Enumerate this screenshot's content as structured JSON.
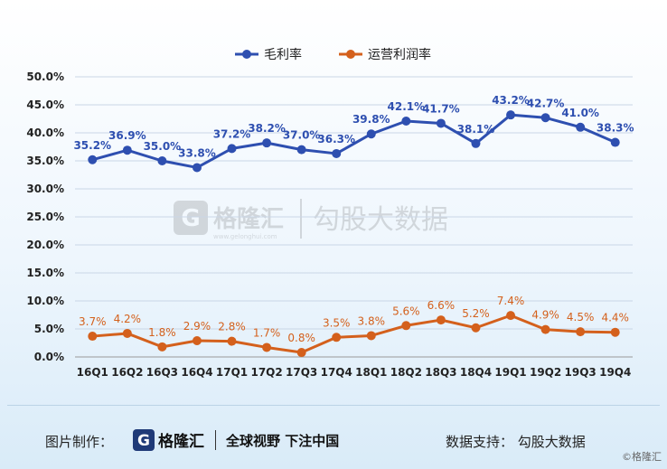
{
  "chart_data": {
    "type": "line",
    "categories": [
      "16Q1",
      "16Q2",
      "16Q3",
      "16Q4",
      "17Q1",
      "17Q2",
      "17Q3",
      "17Q4",
      "18Q1",
      "18Q2",
      "18Q3",
      "18Q4",
      "19Q1",
      "19Q2",
      "19Q3",
      "19Q4"
    ],
    "series": [
      {
        "name": "毛利率",
        "color": "#2e4fb0",
        "values": [
          35.2,
          36.9,
          35.0,
          33.8,
          37.2,
          38.2,
          37.0,
          36.3,
          39.8,
          42.1,
          41.7,
          38.1,
          43.2,
          42.7,
          41.0,
          38.3
        ]
      },
      {
        "name": "运营利润率",
        "color": "#d4601c",
        "values": [
          3.7,
          4.2,
          1.8,
          2.9,
          2.8,
          1.7,
          0.8,
          3.5,
          3.8,
          5.6,
          6.6,
          5.2,
          7.4,
          4.9,
          4.5,
          4.4
        ]
      }
    ],
    "yticks": [
      "0.0%",
      "5.0%",
      "10.0%",
      "15.0%",
      "20.0%",
      "25.0%",
      "30.0%",
      "35.0%",
      "40.0%",
      "45.0%",
      "50.0%"
    ],
    "ylim": [
      0,
      50
    ],
    "grid": true,
    "legend": "top-center",
    "data_labels": true
  },
  "watermark": {
    "brand": "格隆汇",
    "url": "www.gelonghui.com",
    "partner": "勾股大数据"
  },
  "footer": {
    "image_credit_label": "图片制作：",
    "logo_text": "格隆汇",
    "slogan": "全球视野 下注中国",
    "data_support": "数据支持：  勾股大数据",
    "corner_mark": "©格隆汇"
  }
}
